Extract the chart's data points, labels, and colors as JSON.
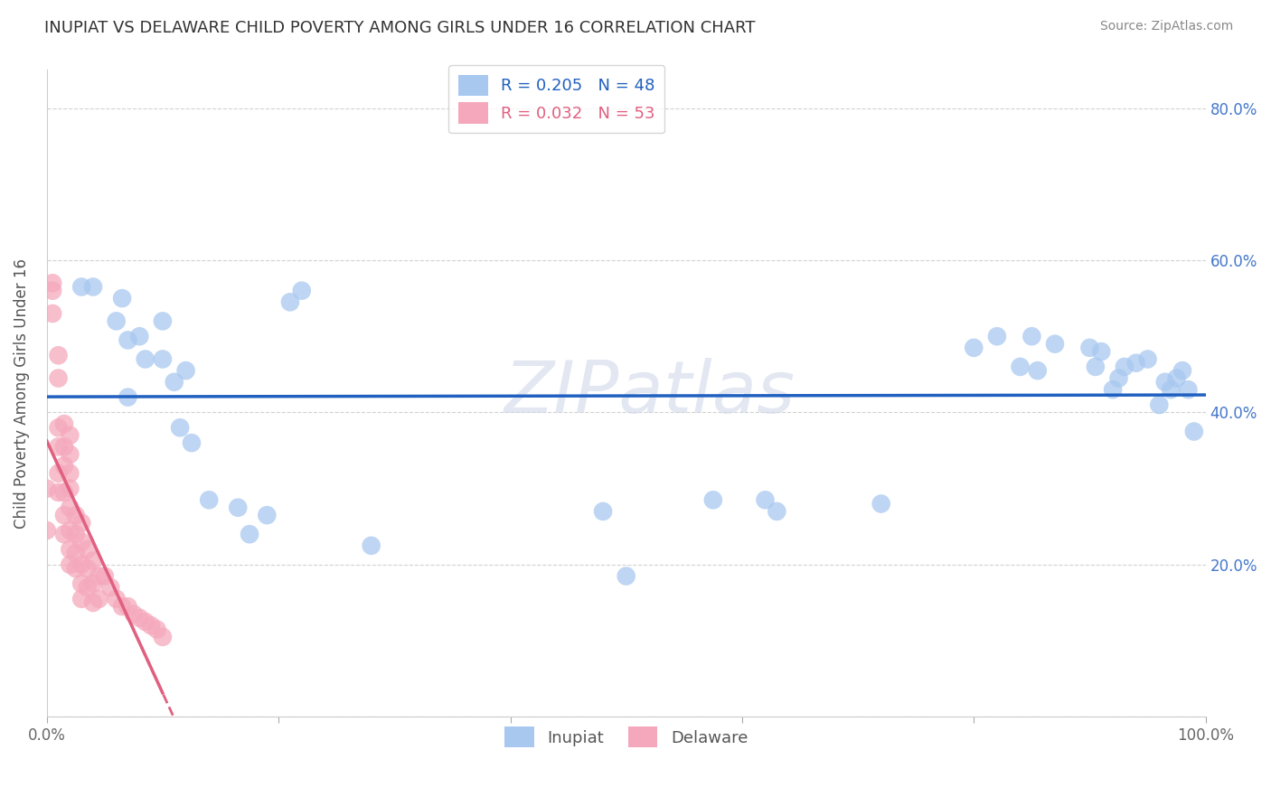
{
  "title": "INUPIAT VS DELAWARE CHILD POVERTY AMONG GIRLS UNDER 16 CORRELATION CHART",
  "source": "Source: ZipAtlas.com",
  "xlabel": "",
  "ylabel": "Child Poverty Among Girls Under 16",
  "xlim": [
    0.0,
    1.0
  ],
  "ylim": [
    0.0,
    0.85
  ],
  "xticks": [
    0.0,
    0.2,
    0.4,
    0.6,
    0.8,
    1.0
  ],
  "xticklabels": [
    "0.0%",
    "",
    "",
    "",
    "",
    "100.0%"
  ],
  "yticks": [
    0.0,
    0.2,
    0.4,
    0.6,
    0.8
  ],
  "inupiat_R": "0.205",
  "inupiat_N": "48",
  "delaware_R": "0.032",
  "delaware_N": "53",
  "inupiat_color": "#a8c8f0",
  "delaware_color": "#f5a8bc",
  "inupiat_line_color": "#2060c0",
  "delaware_line_color": "#e06080",
  "legend_label_inupiat": "Inupiat",
  "legend_label_delaware": "Delaware",
  "watermark": "ZIPatlas",
  "inupiat_x": [
    0.03,
    0.04,
    0.06,
    0.065,
    0.07,
    0.07,
    0.08,
    0.085,
    0.1,
    0.1,
    0.11,
    0.115,
    0.12,
    0.125,
    0.14,
    0.165,
    0.175,
    0.19,
    0.21,
    0.22,
    0.28,
    0.48,
    0.5,
    0.575,
    0.62,
    0.63,
    0.72,
    0.8,
    0.82,
    0.84,
    0.85,
    0.855,
    0.87,
    0.9,
    0.905,
    0.91,
    0.92,
    0.925,
    0.93,
    0.94,
    0.95,
    0.96,
    0.965,
    0.97,
    0.975,
    0.98,
    0.985,
    0.99
  ],
  "inupiat_y": [
    0.565,
    0.565,
    0.52,
    0.55,
    0.495,
    0.42,
    0.5,
    0.47,
    0.47,
    0.52,
    0.44,
    0.38,
    0.455,
    0.36,
    0.285,
    0.275,
    0.24,
    0.265,
    0.545,
    0.56,
    0.225,
    0.27,
    0.185,
    0.285,
    0.285,
    0.27,
    0.28,
    0.485,
    0.5,
    0.46,
    0.5,
    0.455,
    0.49,
    0.485,
    0.46,
    0.48,
    0.43,
    0.445,
    0.46,
    0.465,
    0.47,
    0.41,
    0.44,
    0.43,
    0.445,
    0.455,
    0.43,
    0.375
  ],
  "delaware_x": [
    0.0,
    0.0,
    0.005,
    0.005,
    0.005,
    0.01,
    0.01,
    0.01,
    0.01,
    0.01,
    0.01,
    0.015,
    0.015,
    0.015,
    0.015,
    0.015,
    0.015,
    0.02,
    0.02,
    0.02,
    0.02,
    0.02,
    0.02,
    0.02,
    0.02,
    0.025,
    0.025,
    0.025,
    0.025,
    0.03,
    0.03,
    0.03,
    0.03,
    0.03,
    0.035,
    0.035,
    0.035,
    0.04,
    0.04,
    0.04,
    0.045,
    0.045,
    0.05,
    0.055,
    0.06,
    0.065,
    0.07,
    0.075,
    0.08,
    0.085,
    0.09,
    0.095,
    0.1
  ],
  "delaware_y": [
    0.3,
    0.245,
    0.57,
    0.56,
    0.53,
    0.475,
    0.445,
    0.38,
    0.355,
    0.32,
    0.295,
    0.385,
    0.355,
    0.33,
    0.295,
    0.265,
    0.24,
    0.37,
    0.345,
    0.32,
    0.3,
    0.275,
    0.245,
    0.22,
    0.2,
    0.265,
    0.24,
    0.215,
    0.195,
    0.255,
    0.23,
    0.2,
    0.175,
    0.155,
    0.22,
    0.195,
    0.17,
    0.205,
    0.175,
    0.15,
    0.185,
    0.155,
    0.185,
    0.17,
    0.155,
    0.145,
    0.145,
    0.135,
    0.13,
    0.125,
    0.12,
    0.115,
    0.105
  ]
}
